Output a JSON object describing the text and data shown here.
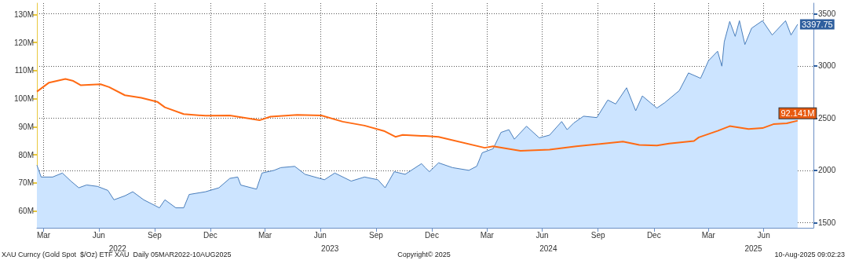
{
  "chart_data": {
    "type": "line",
    "annotations": [
      "XAU Curncy (Gold Spot  $/Oz) ETF XAU  Daily 05MAR2022-10AUG2025",
      "Copyright© 2025",
      "10-Aug-2025 09:02:23"
    ],
    "xlim": [
      "2022-03-05",
      "2025-09-05"
    ],
    "xticks": [
      {
        "value": "2022-03-16",
        "label": "Mar"
      },
      {
        "value": "2022-06-15",
        "label": "Jun"
      },
      {
        "value": "2022-09-15",
        "label": "Sep"
      },
      {
        "value": "2022-12-16",
        "label": "Dec"
      },
      {
        "value": "2023-03-16",
        "label": "Mar"
      },
      {
        "value": "2023-06-15",
        "label": "Jun"
      },
      {
        "value": "2023-09-15",
        "label": "Sep"
      },
      {
        "value": "2023-12-16",
        "label": "Dec"
      },
      {
        "value": "2024-03-16",
        "label": "Mar"
      },
      {
        "value": "2024-06-15",
        "label": "Jun"
      },
      {
        "value": "2024-09-15",
        "label": "Sep"
      },
      {
        "value": "2024-12-16",
        "label": "Dec"
      },
      {
        "value": "2025-03-16",
        "label": "Mar"
      },
      {
        "value": "2025-06-15",
        "label": "Jun"
      }
    ],
    "x2lim": [
      "2022-03-05",
      "2025-09-05"
    ],
    "x2ticks": [
      {
        "value": "2022-07-16",
        "label": "2022"
      },
      {
        "value": "2023-07-01",
        "label": "2023"
      },
      {
        "value": "2024-06-25",
        "label": "2024"
      },
      {
        "value": "2025-05-29",
        "label": "2025"
      }
    ],
    "ylim": [
      54,
      134
    ],
    "yticks": [
      {
        "value": 60,
        "label": "60M"
      },
      {
        "value": 70,
        "label": "70M"
      },
      {
        "value": 80,
        "label": "80M"
      },
      {
        "value": 90,
        "label": "90M"
      },
      {
        "value": 100,
        "label": "100M"
      },
      {
        "value": 110,
        "label": "110M"
      },
      {
        "value": 120,
        "label": "120M"
      },
      {
        "value": 130,
        "label": "130M"
      }
    ],
    "y2lim": [
      1450,
      3600
    ],
    "y2ticks": [
      1500,
      2000,
      2500,
      3000,
      3500
    ],
    "grid": true,
    "series": [
      {
        "type": "area",
        "axis": "y2",
        "color": "#4a7ebb",
        "x": [
          "2022-03-05",
          "2022-03-12",
          "2022-03-31",
          "2022-04-16",
          "2022-04-30",
          "2022-05-13",
          "2022-05-26",
          "2022-06-13",
          "2022-06-30",
          "2022-07-10",
          "2022-07-28",
          "2022-08-10",
          "2022-08-28",
          "2022-09-23",
          "2022-10-02",
          "2022-10-20",
          "2022-11-02",
          "2022-11-11",
          "2022-12-08",
          "2022-12-30",
          "2023-01-17",
          "2023-01-30",
          "2023-02-04",
          "2023-03-02",
          "2023-03-11",
          "2023-03-31",
          "2023-04-11",
          "2023-05-04",
          "2023-05-21",
          "2023-06-22",
          "2023-07-09",
          "2023-08-05",
          "2023-08-27",
          "2023-09-18",
          "2023-09-30",
          "2023-10-15",
          "2023-11-02",
          "2023-11-29",
          "2023-12-05",
          "2023-12-12",
          "2023-12-27",
          "2024-01-19",
          "2024-02-15",
          "2024-02-28",
          "2024-03-08",
          "2024-03-26",
          "2024-04-08",
          "2024-04-21",
          "2024-04-30",
          "2024-05-20",
          "2024-06-10",
          "2024-06-27",
          "2024-07-17",
          "2024-07-26",
          "2024-08-06",
          "2024-08-22",
          "2024-09-13",
          "2024-10-01",
          "2024-10-14",
          "2024-11-01",
          "2024-11-16",
          "2024-11-27",
          "2024-12-10",
          "2024-12-21",
          "2025-01-03",
          "2025-01-27",
          "2025-02-11",
          "2025-03-03",
          "2025-03-16",
          "2025-03-31",
          "2025-04-07",
          "2025-04-11",
          "2025-04-20",
          "2025-04-29",
          "2025-05-06",
          "2025-05-15",
          "2025-05-26",
          "2025-06-13",
          "2025-06-29",
          "2025-07-21",
          "2025-07-30",
          "2025-08-10"
        ],
        "values": [
          2050,
          1936,
          1936,
          1974,
          1897,
          1833,
          1860,
          1846,
          1808,
          1718,
          1756,
          1795,
          1718,
          1641,
          1718,
          1641,
          1641,
          1769,
          1795,
          1833,
          1923,
          1936,
          1859,
          1820,
          1974,
          2000,
          2026,
          2038,
          1962,
          1910,
          1974,
          1897,
          1936,
          1910,
          1833,
          1987,
          1962,
          2064,
          2026,
          1987,
          2072,
          2026,
          2000,
          2039,
          2168,
          2207,
          2363,
          2389,
          2298,
          2422,
          2311,
          2337,
          2467,
          2389,
          2453,
          2518,
          2505,
          2673,
          2635,
          2790,
          2570,
          2712,
          2648,
          2596,
          2648,
          2764,
          2932,
          2881,
          3049,
          3140,
          2997,
          3230,
          3425,
          3282,
          3432,
          3204,
          3360,
          3432,
          3295,
          3432,
          3295,
          3397.75
        ],
        "value_labels": [
          null,
          null,
          null,
          null,
          null,
          null,
          null,
          null,
          null,
          null,
          null,
          null,
          null,
          null,
          null,
          null,
          null,
          null,
          null,
          null,
          null,
          null,
          null,
          null,
          null,
          null,
          null,
          null,
          null,
          null,
          null,
          null,
          null,
          null,
          null,
          null,
          null,
          null,
          null,
          null,
          null,
          null,
          null,
          null,
          null,
          null,
          null,
          null,
          null,
          null,
          null,
          null,
          null,
          null,
          null,
          null,
          null,
          null,
          null,
          null,
          null,
          null,
          null,
          null,
          null,
          null,
          null,
          null,
          null,
          null,
          null,
          null,
          null,
          null,
          null,
          null,
          null,
          null,
          null,
          null,
          null,
          "3397.75"
        ]
      },
      {
        "color": "#ff6a13",
        "x": [
          "2022-03-05",
          "2022-03-25",
          "2022-04-21",
          "2022-05-04",
          "2022-05-16",
          "2022-06-18",
          "2022-07-02",
          "2022-07-28",
          "2022-08-24",
          "2022-09-20",
          "2022-10-02",
          "2022-11-02",
          "2022-12-08",
          "2023-01-17",
          "2023-03-07",
          "2023-03-25",
          "2023-05-08",
          "2023-06-17",
          "2023-07-22",
          "2023-08-27",
          "2023-09-28",
          "2023-10-17",
          "2023-10-29",
          "2023-11-29",
          "2023-12-05",
          "2023-12-27",
          "2024-03-12",
          "2024-03-26",
          "2024-05-10",
          "2024-06-27",
          "2024-08-10",
          "2024-10-26",
          "2024-11-22",
          "2024-12-21",
          "2025-01-10",
          "2025-02-20",
          "2025-02-28",
          "2025-03-31",
          "2025-04-20",
          "2025-05-21",
          "2025-06-13",
          "2025-07-01",
          "2025-07-23",
          "2025-08-10"
        ],
        "values": [
          102.5,
          105.7,
          107.0,
          106.3,
          104.8,
          105.1,
          104.1,
          101.2,
          100.3,
          98.8,
          96.9,
          94.5,
          93.9,
          94.0,
          92.3,
          93.6,
          94.2,
          94.0,
          91.8,
          90.4,
          88.5,
          86.4,
          87.1,
          86.7,
          86.7,
          86.4,
          82.5,
          83.0,
          81.4,
          81.8,
          83.0,
          84.7,
          83.5,
          83.3,
          84.0,
          84.9,
          86.2,
          88.5,
          90.2,
          89.2,
          89.5,
          90.9,
          91.2,
          92.141
        ],
        "value_labels": [
          null,
          null,
          null,
          null,
          null,
          null,
          null,
          null,
          null,
          null,
          null,
          null,
          null,
          null,
          null,
          null,
          null,
          null,
          null,
          null,
          null,
          null,
          null,
          null,
          null,
          null,
          null,
          null,
          null,
          null,
          null,
          null,
          null,
          null,
          null,
          null,
          null,
          null,
          null,
          null,
          null,
          null,
          null,
          "92.141M"
        ]
      }
    ]
  }
}
